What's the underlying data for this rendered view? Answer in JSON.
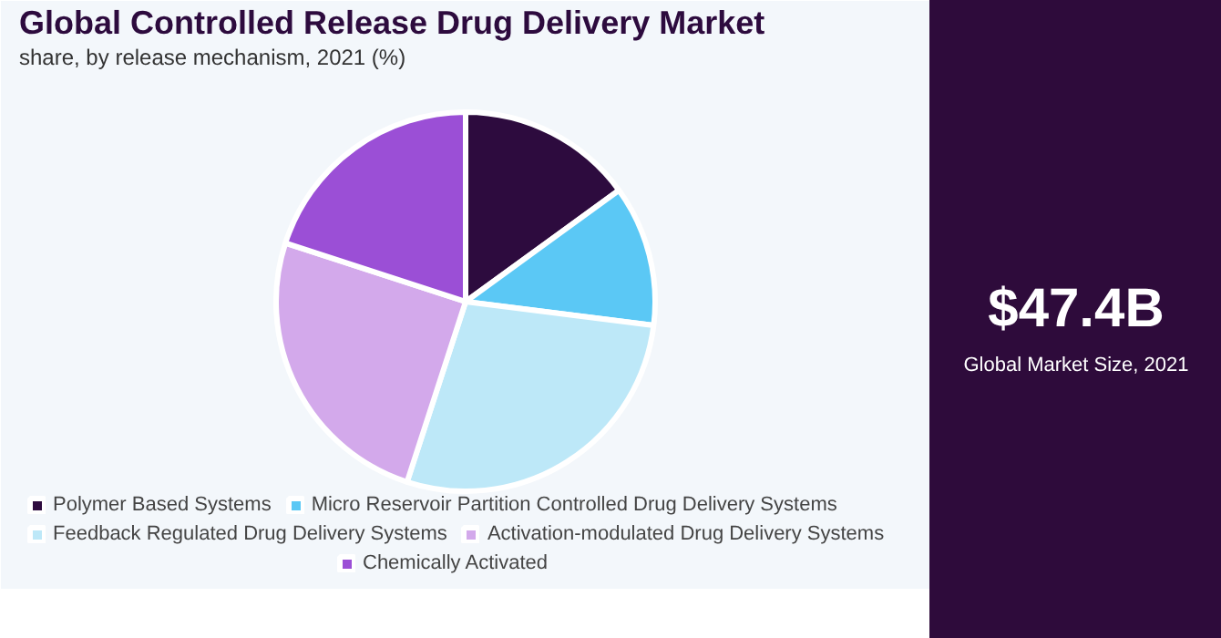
{
  "chart_data": {
    "type": "pie",
    "title": "Global Controlled Release Drug Delivery Market",
    "subtitle": "share, by release mechanism, 2021 (%)",
    "categories": [
      "Polymer Based Systems",
      "Micro Reservoir Partition Controlled Drug Delivery Systems",
      "Feedback Regulated Drug Delivery Systems",
      "Activation-modulated Drug Delivery Systems",
      "Chemically Activated"
    ],
    "values": [
      15,
      12,
      28,
      25,
      20
    ],
    "colors": [
      "#2d0b3e",
      "#5bc8f5",
      "#bde8f8",
      "#d3a9eb",
      "#9b4fd6"
    ],
    "legend": "bottom",
    "annotations": [
      "$47.4B",
      "Global Market Size, 2021"
    ]
  }
}
